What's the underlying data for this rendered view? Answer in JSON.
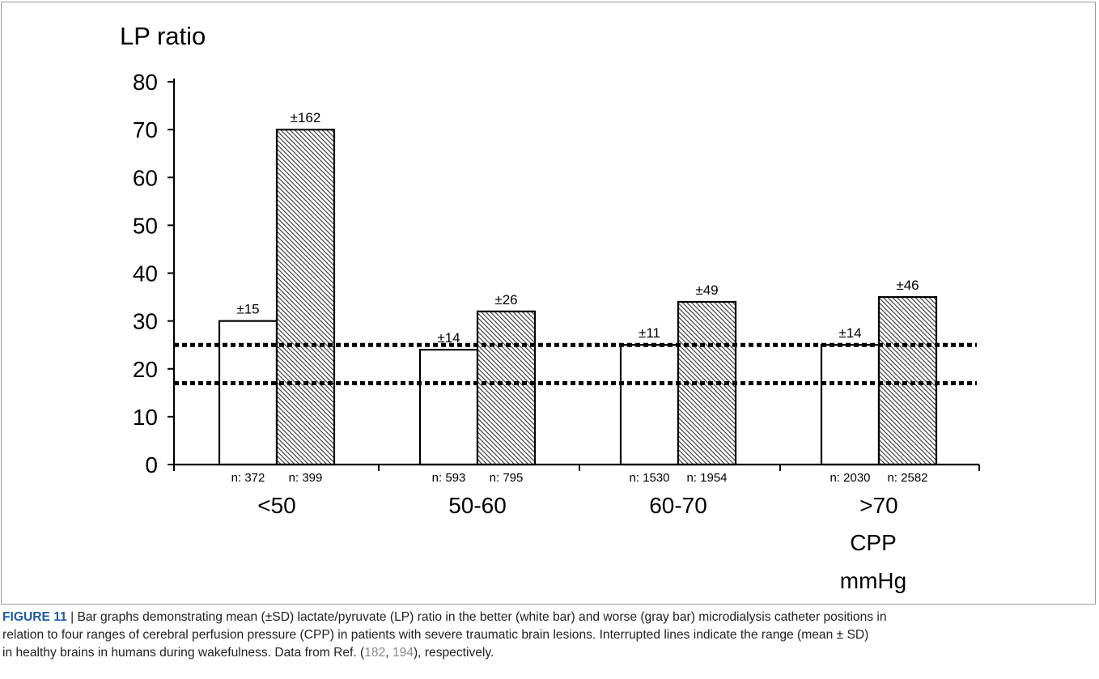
{
  "chart_data": {
    "type": "bar",
    "title": "",
    "ylabel": "LP ratio",
    "xlabel_lines": [
      "CPP",
      "mmHg"
    ],
    "ylim": [
      0,
      80
    ],
    "yticks": [
      0,
      10,
      20,
      30,
      40,
      50,
      60,
      70,
      80
    ],
    "categories": [
      "<50",
      "50-60",
      "60-70",
      ">70"
    ],
    "series": [
      {
        "style": "white",
        "values": [
          30,
          24,
          25,
          25
        ],
        "sd_labels": [
          "±15",
          "±14",
          "±11",
          "±14"
        ],
        "n_labels": [
          "n: 372",
          "n: 593",
          "n: 1530",
          "n: 2030"
        ]
      },
      {
        "style": "hatched-gray",
        "values": [
          70,
          32,
          34,
          35
        ],
        "sd_labels": [
          "±162",
          "±26",
          "±49",
          "±46"
        ],
        "n_labels": [
          "n: 399",
          "n: 795",
          "n: 1954",
          "n: 2582"
        ]
      }
    ],
    "reference_lines": [
      {
        "style": "dotted",
        "value": 25
      },
      {
        "style": "dotted",
        "value": 17
      }
    ],
    "grid": false,
    "legend": "none"
  },
  "caption": {
    "label": "FIGURE 11",
    "separator": " | ",
    "text_line1": "Bar graphs demonstrating mean (±SD) lactate/pyruvate (LP) ratio in the better (white bar) and worse (gray bar) microdialysis catheter positions in",
    "text_line2": "relation to four ranges of cerebral perfusion pressure (CPP) in patients with severe traumatic brain lesions. Interrupted lines indicate the range (mean ± SD)",
    "text_line3_pre": "in healthy brains in humans during wakefulness. Data from Ref. (",
    "ref1": "182",
    "ref_sep": ", ",
    "ref2": "194",
    "text_line3_post": "), respectively."
  },
  "colors": {
    "frame": "#9a9a9a",
    "axis": "#000000",
    "bar_white": "#ffffff",
    "hatch": "#333333",
    "caption_label": "#1f5aa0",
    "caption_ref": "#8a8a8a"
  }
}
